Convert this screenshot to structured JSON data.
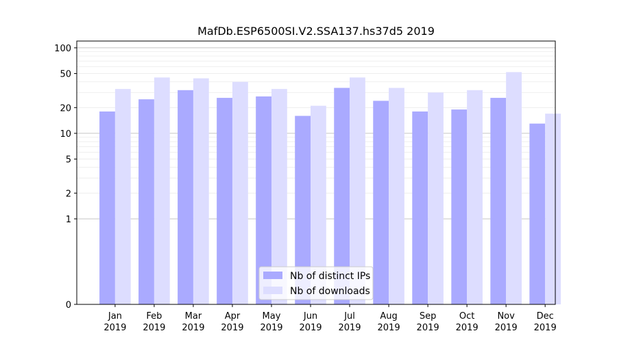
{
  "chart_data": {
    "type": "bar",
    "title": "MafDb.ESP6500SI.V2.SSA137.hs37d5 2019",
    "xlabel": "",
    "ylabel": "",
    "yscale": "symlog",
    "ylim": [
      0,
      120
    ],
    "yticks": [
      0,
      1,
      2,
      5,
      10,
      20,
      50,
      100
    ],
    "ytick_labels": [
      "0",
      "1",
      "2",
      "5",
      "10",
      "20",
      "50",
      "100"
    ],
    "categories": [
      [
        "Jan",
        "2019"
      ],
      [
        "Feb",
        "2019"
      ],
      [
        "Mar",
        "2019"
      ],
      [
        "Apr",
        "2019"
      ],
      [
        "May",
        "2019"
      ],
      [
        "Jun",
        "2019"
      ],
      [
        "Jul",
        "2019"
      ],
      [
        "Aug",
        "2019"
      ],
      [
        "Sep",
        "2019"
      ],
      [
        "Oct",
        "2019"
      ],
      [
        "Nov",
        "2019"
      ],
      [
        "Dec",
        "2019"
      ]
    ],
    "series": [
      {
        "name": "Nb of distinct IPs",
        "color": "#aaaaff",
        "values": [
          18,
          25,
          32,
          26,
          27,
          16,
          34,
          24,
          18,
          19,
          26,
          13
        ]
      },
      {
        "name": "Nb of downloads",
        "color": "#ddddff",
        "values": [
          33,
          45,
          44,
          40,
          33,
          21,
          45,
          34,
          30,
          32,
          52,
          17
        ]
      }
    ],
    "legend_position": "lower-center",
    "grid": true
  }
}
